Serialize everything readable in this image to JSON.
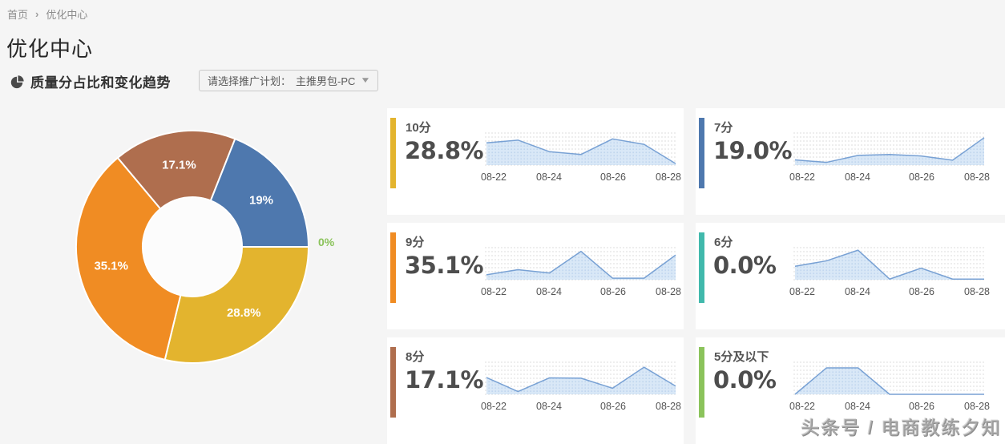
{
  "breadcrumb": {
    "home": "首页",
    "separator": "›",
    "current": "优化中心"
  },
  "page_title": "优化中心",
  "section": {
    "title": "质量分占比和变化趋势",
    "plan_select_label": "请选择推广计划：",
    "plan_select_value": "主推男包-PC",
    "caret": "▼"
  },
  "watermark": "头条号 / 电商教练夕知",
  "colors": {
    "score10": "#e3b42e",
    "score9": "#f08c23",
    "score8": "#af6e4e",
    "score7": "#4e78ae",
    "score6": "#41b9ac",
    "score5_below": "#8bc35b",
    "spark_line": "#78a1d4",
    "spark_fill": "rgba(183,211,240,0.55)",
    "grid_line": "#dcdcdc",
    "page_bg": "#f5f5f5",
    "card_bg": "#ffffff"
  },
  "chart_data": [
    {
      "type": "pie",
      "title": "质量分占比和变化趋势",
      "donut": true,
      "start_deg_clockwise_from_east": 0,
      "slices": [
        {
          "label": "10分",
          "value": 28.8,
          "text": "28.8%",
          "color": "#e3b42e",
          "outside": false
        },
        {
          "label": "9分",
          "value": 35.1,
          "text": "35.1%",
          "color": "#f08c23",
          "outside": false
        },
        {
          "label": "8分",
          "value": 17.1,
          "text": "17.1%",
          "color": "#af6e4e",
          "outside": false
        },
        {
          "label": "7分",
          "value": 19.0,
          "text": "19%",
          "color": "#4e78ae",
          "outside": false
        },
        {
          "label": "6分/5分及以下",
          "value": 0,
          "text": "0%",
          "color": "#8bc35b",
          "outside": true
        }
      ]
    },
    {
      "type": "line",
      "x": [
        "08-22",
        "08-23",
        "08-24",
        "08-25",
        "08-26",
        "08-27",
        "08-28"
      ],
      "tick_labels": [
        "08-22",
        "08-24",
        "08-26",
        "08-28"
      ],
      "ylabel": "",
      "grid": true,
      "series": [
        {
          "name": "10分",
          "values_normalized": [
            0.73,
            0.82,
            0.44,
            0.35,
            0.86,
            0.68,
            0.05
          ]
        },
        {
          "name": "7分",
          "values_normalized": [
            0.17,
            0.09,
            0.32,
            0.35,
            0.3,
            0.16,
            0.9
          ]
        },
        {
          "name": "9分",
          "values_normalized": [
            0.16,
            0.33,
            0.22,
            0.93,
            0.05,
            0.05,
            0.81
          ]
        },
        {
          "name": "6分",
          "values_normalized": [
            0.44,
            0.62,
            0.97,
            0.02,
            0.38,
            0.02,
            0.02
          ]
        },
        {
          "name": "8分",
          "values_normalized": [
            0.55,
            0.09,
            0.54,
            0.53,
            0.2,
            0.89,
            0.27
          ]
        },
        {
          "name": "5分及以下",
          "values_normalized": [
            0.0,
            0.87,
            0.87,
            0.0,
            0.0,
            0.0,
            0.0
          ]
        }
      ]
    }
  ],
  "cards": [
    {
      "title": "10分",
      "percent": "28.8%",
      "accent": "#e3b42e"
    },
    {
      "title": "7分",
      "percent": "19.0%",
      "accent": "#4e78ae"
    },
    {
      "title": "9分",
      "percent": "35.1%",
      "accent": "#f08c23"
    },
    {
      "title": "6分",
      "percent": "0.0%",
      "accent": "#41b9ac"
    },
    {
      "title": "8分",
      "percent": "17.1%",
      "accent": "#af6e4e"
    },
    {
      "title": "5分及以下",
      "percent": "0.0%",
      "accent": "#8bc35b"
    }
  ]
}
